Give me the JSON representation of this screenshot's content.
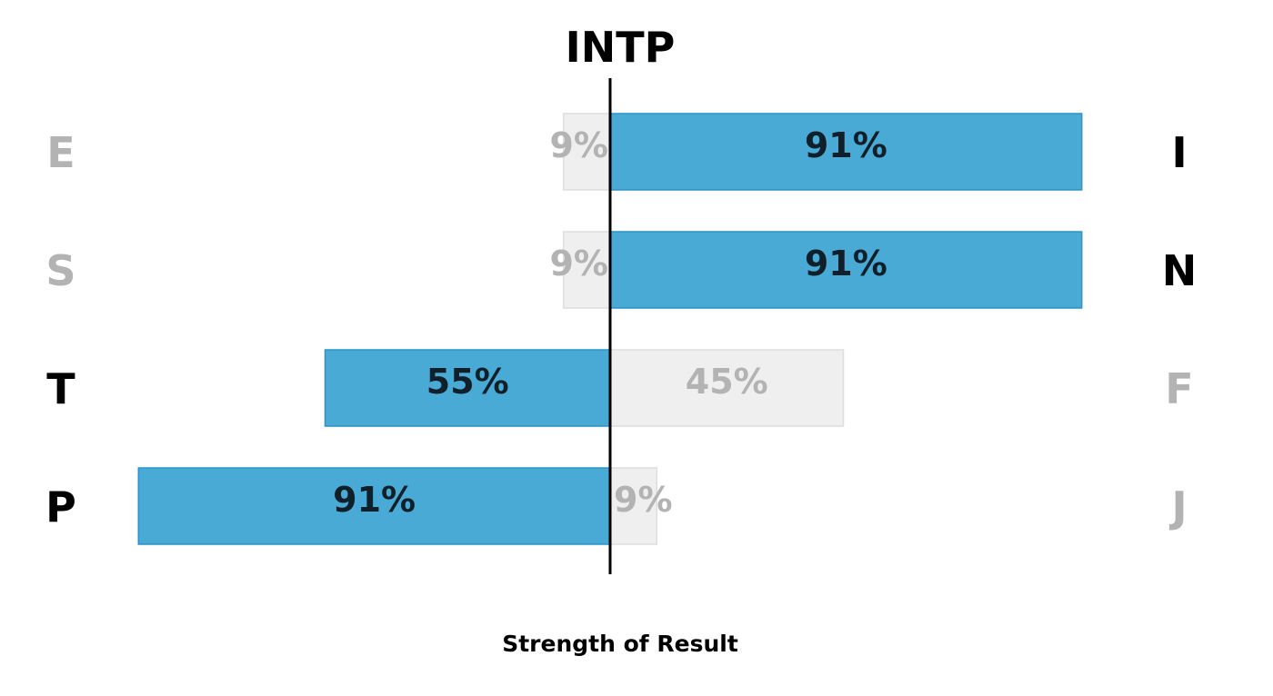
{
  "chart_data": {
    "type": "bar",
    "title": "INTP",
    "xlabel": "Strength of Result",
    "colors": {
      "dominant_fill": "#4aaad6",
      "dominant_stroke": "#2b93c7",
      "dominant_label": "#10202b",
      "minor_fill": "#efefef",
      "minor_stroke": "#dedede",
      "minor_label": "#b3b3b3",
      "active_letter": "#000000",
      "inactive_letter": "#b3b3b3",
      "axis": "#000000"
    },
    "rows": [
      {
        "left_letter": "E",
        "right_letter": "I",
        "left_value": 9,
        "right_value": 91,
        "left_label": "9%",
        "right_label": "91%",
        "dominant": "right"
      },
      {
        "left_letter": "S",
        "right_letter": "N",
        "left_value": 9,
        "right_value": 91,
        "left_label": "9%",
        "right_label": "91%",
        "dominant": "right"
      },
      {
        "left_letter": "T",
        "right_letter": "F",
        "left_value": 55,
        "right_value": 45,
        "left_label": "55%",
        "right_label": "45%",
        "dominant": "left"
      },
      {
        "left_letter": "P",
        "right_letter": "J",
        "left_value": 91,
        "right_value": 9,
        "left_label": "91%",
        "right_label": "9%",
        "dominant": "left"
      }
    ]
  }
}
